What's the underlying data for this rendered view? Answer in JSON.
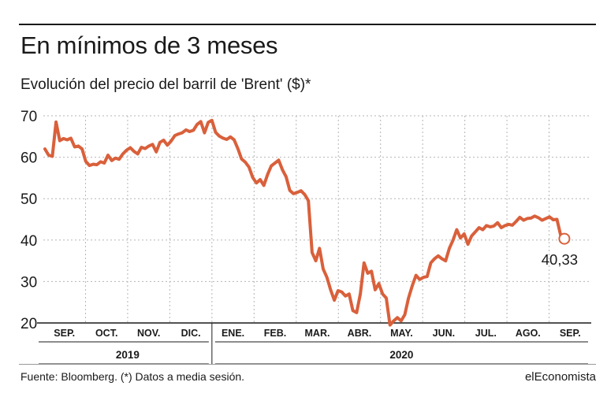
{
  "header": {
    "title": "En mínimos de 3 meses",
    "subtitle": "Evolución del precio del barril de 'Brent' ($)*"
  },
  "footer": {
    "source": "Fuente: Bloomberg. (*) Datos a media sesión.",
    "brand": "elEconomista"
  },
  "colors": {
    "line": "#d9603b",
    "grid": "#b5b5b5",
    "axis": "#1a1a1a"
  },
  "chart_data": {
    "type": "line",
    "title": "En mínimos de 3 meses",
    "subtitle": "Evolución del precio del barril de 'Brent' ($)*",
    "ylim": [
      20,
      70
    ],
    "yticks": [
      20,
      30,
      40,
      50,
      60,
      70
    ],
    "grid": true,
    "months": [
      "SEP.",
      "OCT.",
      "NOV.",
      "DIC.",
      "ENE.",
      "FEB.",
      "MAR.",
      "ABR.",
      "MAY.",
      "JUN.",
      "JUL.",
      "AGO.",
      "SEP."
    ],
    "years": [
      {
        "label": "2019",
        "months": [
          "SEP.",
          "OCT.",
          "NOV.",
          "DIC."
        ]
      },
      {
        "label": "2020",
        "months": [
          "ENE.",
          "FEB.",
          "MAR.",
          "ABR.",
          "MAY.",
          "JUN.",
          "JUL.",
          "AGO.",
          "SEP."
        ]
      }
    ],
    "series": [
      {
        "values": [
          62,
          60.5,
          60.2,
          68.5,
          64,
          64.5,
          64.2,
          64.6,
          62.5,
          62.7,
          62,
          59,
          58,
          58.3,
          58.2,
          58.9,
          58.6,
          60.5,
          59.2,
          59.8,
          59.5,
          60.8,
          61.7,
          62.3,
          61.4,
          60.8,
          62.4,
          62.1,
          62.7,
          63.1,
          61.3,
          63.6,
          64.1,
          62.9,
          63.9,
          65.2,
          65.6,
          65.9,
          66.6,
          66.2,
          66.5,
          67.9,
          68.6,
          65.9,
          68.4,
          68.9,
          66,
          65.1,
          64.6,
          64.3,
          64.9,
          64.2,
          62.1,
          59.6,
          58.8,
          57.6,
          55.1,
          53.8,
          54.6,
          53.2,
          55.8,
          57.9,
          58.6,
          59.3,
          57,
          55.3,
          52,
          51.2,
          51.5,
          51.9,
          51,
          49.5,
          37,
          35,
          38,
          33,
          31,
          28,
          25.5,
          27.8,
          27.5,
          26.5,
          27,
          23,
          22.5,
          27,
          34.5,
          32,
          32.5,
          28,
          29.5,
          27,
          26,
          19.5,
          20.5,
          21.3,
          20.5,
          22,
          26,
          29,
          31.5,
          30.5,
          31,
          31.2,
          34.5,
          35.5,
          36.2,
          35.5,
          35,
          38,
          40,
          42.5,
          40.5,
          41.5,
          39,
          41,
          42,
          43,
          42.5,
          43.5,
          43.2,
          43.4,
          44.2,
          43,
          43.5,
          43.8,
          43.6,
          44.5,
          45.5,
          44.8,
          45.2,
          45.3,
          45.8,
          45.4,
          44.8,
          45.2,
          45.6,
          44.9,
          45,
          41.2,
          40.33
        ]
      }
    ],
    "last_value_label": "40,33"
  }
}
